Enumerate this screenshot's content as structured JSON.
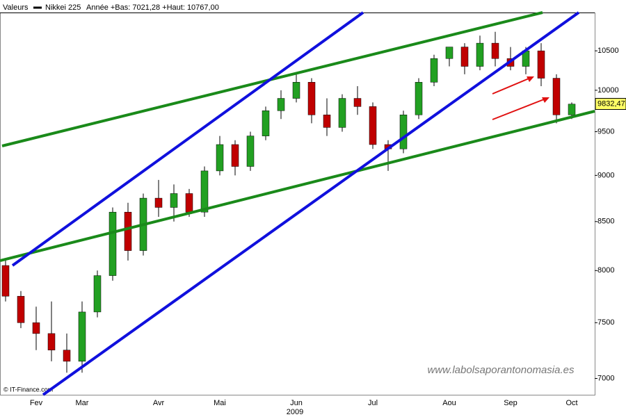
{
  "chart_data": {
    "type": "candlestick",
    "header_label": "Valeurs",
    "range_text": "Année +Bas: 7021,28 +Haut: 10767,00",
    "x_label": "2009",
    "source": "© IT-Finance.com",
    "watermark": "www.labolsaporantonomasia.es",
    "categories": [
      null,
      null,
      "Fev",
      null,
      null,
      "Mar",
      null,
      null,
      null,
      null,
      "Avr",
      null,
      null,
      null,
      "Mai",
      null,
      null,
      null,
      null,
      "Jun",
      null,
      null,
      null,
      null,
      "Jul",
      null,
      null,
      null,
      null,
      "Aou",
      null,
      null,
      null,
      "Sep",
      null,
      null,
      null,
      "Oct"
    ],
    "series": [
      {
        "name": "Nikkei 225",
        "up_color": "#22a022",
        "down_color": "#c00000",
        "open": [
          8050,
          7750,
          7500,
          7400,
          7250,
          7150,
          7600,
          7950,
          8600,
          8200,
          8750,
          8650,
          8800,
          8600,
          9050,
          9350,
          9100,
          9450,
          9750,
          9900,
          10100,
          9700,
          9550,
          9900,
          9800,
          9350,
          9300,
          9700,
          10100,
          10400,
          10550,
          10300,
          10600,
          10400,
          10300,
          10500,
          10150,
          9700
        ],
        "high": [
          8100,
          7800,
          7650,
          7700,
          7400,
          7700,
          8000,
          8650,
          8700,
          8800,
          8950,
          8900,
          8850,
          9100,
          9450,
          9400,
          9500,
          9800,
          10000,
          10200,
          10150,
          9900,
          9950,
          10050,
          9850,
          9400,
          9750,
          10150,
          10450,
          10550,
          10600,
          10700,
          10750,
          10550,
          10550,
          10600,
          10200,
          9850
        ],
        "low": [
          7700,
          7450,
          7250,
          7150,
          7050,
          7050,
          7550,
          7900,
          8100,
          8150,
          8550,
          8500,
          8550,
          8550,
          9000,
          9000,
          9050,
          9400,
          9650,
          9850,
          9600,
          9450,
          9500,
          9700,
          9300,
          9050,
          9250,
          9650,
          10050,
          10300,
          10200,
          10250,
          10300,
          10250,
          10200,
          10050,
          9600,
          9650
        ],
        "close": [
          7750,
          7500,
          7400,
          7250,
          7150,
          7600,
          7950,
          8600,
          8200,
          8750,
          8650,
          8800,
          8600,
          9050,
          9350,
          9100,
          9450,
          9750,
          9900,
          10100,
          9700,
          9550,
          9900,
          9800,
          9350,
          9300,
          9700,
          10100,
          10400,
          10550,
          10300,
          10600,
          10400,
          10300,
          10500,
          10150,
          9700,
          9830
        ]
      }
    ],
    "last_price": {
      "value": 9832.47,
      "label": "9832,47"
    },
    "log_scale": true,
    "grid": false,
    "ylim": [
      6860,
      11010
    ],
    "yticks": [
      7000,
      7500,
      8000,
      8500,
      9000,
      9500,
      10000,
      10500
    ]
  }
}
